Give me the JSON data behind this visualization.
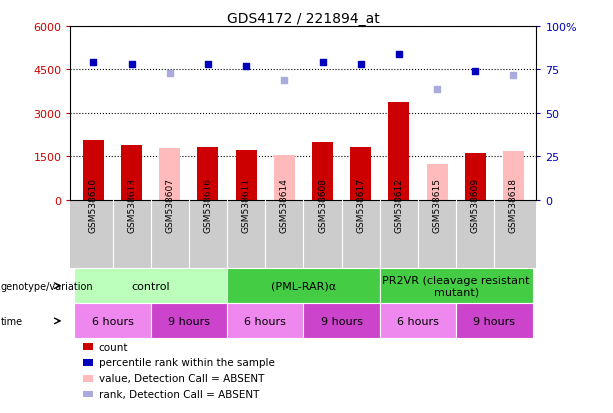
{
  "title": "GDS4172 / 221894_at",
  "samples": [
    "GSM538610",
    "GSM538613",
    "GSM538607",
    "GSM538616",
    "GSM538611",
    "GSM538614",
    "GSM538608",
    "GSM538617",
    "GSM538612",
    "GSM538615",
    "GSM538609",
    "GSM538618"
  ],
  "count_values": [
    2050,
    1900,
    null,
    1820,
    1720,
    null,
    1980,
    1820,
    3380,
    null,
    1600,
    null
  ],
  "count_absent": [
    null,
    null,
    1800,
    null,
    null,
    1540,
    null,
    null,
    null,
    1250,
    null,
    1700
  ],
  "rank_values": [
    79,
    78,
    null,
    78,
    77,
    null,
    79,
    78,
    84,
    null,
    74,
    null
  ],
  "rank_absent": [
    null,
    null,
    73,
    null,
    null,
    69,
    null,
    null,
    null,
    64,
    null,
    72
  ],
  "ylim_left": [
    0,
    6000
  ],
  "ylim_right": [
    0,
    100
  ],
  "yticks_left": [
    0,
    1500,
    3000,
    4500,
    6000
  ],
  "yticks_right": [
    0,
    25,
    50,
    75,
    100
  ],
  "ytick_labels_right": [
    "0",
    "25",
    "50",
    "75",
    "100%"
  ],
  "genotype_groups": [
    {
      "label": "control",
      "start": 0,
      "end": 4,
      "color": "#bbffbb"
    },
    {
      "label": "(PML-RAR)α",
      "start": 4,
      "end": 8,
      "color": "#44cc44"
    },
    {
      "label": "PR2VR (cleavage resistant\nmutant)",
      "start": 8,
      "end": 12,
      "color": "#44cc44"
    }
  ],
  "time_groups": [
    {
      "label": "6 hours",
      "start": 0,
      "end": 2,
      "color": "#ee88ee"
    },
    {
      "label": "9 hours",
      "start": 2,
      "end": 4,
      "color": "#cc44cc"
    },
    {
      "label": "6 hours",
      "start": 4,
      "end": 6,
      "color": "#ee88ee"
    },
    {
      "label": "9 hours",
      "start": 6,
      "end": 8,
      "color": "#cc44cc"
    },
    {
      "label": "6 hours",
      "start": 8,
      "end": 10,
      "color": "#ee88ee"
    },
    {
      "label": "9 hours",
      "start": 10,
      "end": 12,
      "color": "#cc44cc"
    }
  ],
  "bar_width": 0.55,
  "count_color": "#cc0000",
  "count_absent_color": "#ffbbbb",
  "rank_color": "#0000bb",
  "rank_absent_color": "#aaaadd",
  "plot_bg_color": "#ffffff",
  "xtick_bg_color": "#cccccc",
  "grid_color": "#000000",
  "label_color_left": "#cc0000",
  "label_color_right": "#0000bb",
  "label_fontsize": 8,
  "tick_label_fontsize": 6.5,
  "geno_fontsize": 8,
  "time_fontsize": 8,
  "legend_fontsize": 7.5
}
